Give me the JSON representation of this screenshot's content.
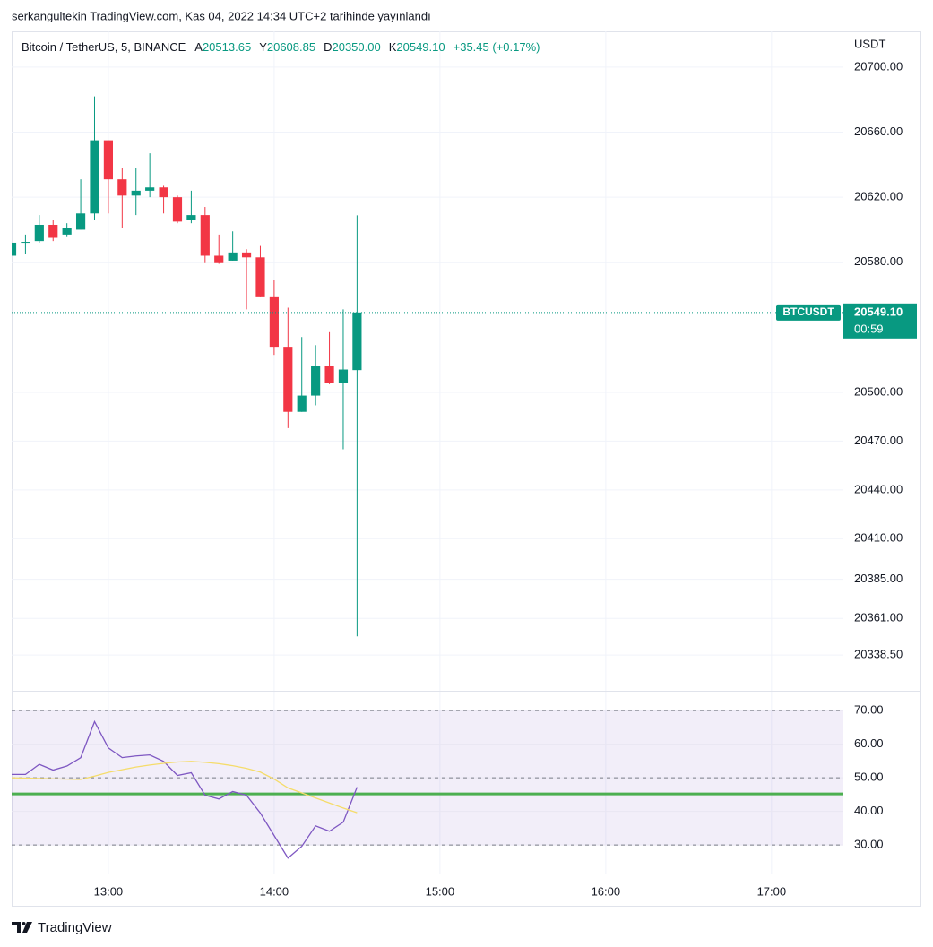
{
  "header": {
    "publisher": "serkangultekin TradingView.com, Kas 04, 2022 14:34 UTC+2 tarihinde yayınlandı"
  },
  "legend": {
    "symbol": "Bitcoin / TetherUS, 5, BINANCE",
    "ohlc": [
      {
        "label": "A",
        "value": "20513.65"
      },
      {
        "label": "Y",
        "value": "20608.85"
      },
      {
        "label": "D",
        "value": "20350.00"
      },
      {
        "label": "K",
        "value": "20549.10"
      }
    ],
    "change": "+35.45 (+0.17%)"
  },
  "chart_data": [
    {
      "type": "candlestick",
      "currency": "USDT",
      "x": [
        "12:25",
        "12:30",
        "12:35",
        "12:40",
        "12:45",
        "12:50",
        "12:55",
        "13:00",
        "13:05",
        "13:10",
        "13:15",
        "13:20",
        "13:25",
        "13:30",
        "13:35",
        "13:40",
        "13:45",
        "13:50",
        "13:55",
        "14:00",
        "14:05",
        "14:10",
        "14:15",
        "14:20",
        "14:25",
        "14:30"
      ],
      "open": [
        20584,
        20592,
        20593,
        20603,
        20597,
        20600,
        20610,
        20655,
        20631,
        20621,
        20624,
        20626,
        20620,
        20606,
        20609,
        20584,
        20581,
        20586,
        20583,
        20559,
        20528,
        20488,
        20498,
        20516.5,
        20506,
        20513.65
      ],
      "high": [
        20592,
        20597,
        20609,
        20606,
        20604,
        20631,
        20682,
        20655,
        20638,
        20638,
        20647,
        20627,
        20621,
        20624,
        20614,
        20597,
        20599,
        20588,
        20590,
        20569,
        20552,
        20534,
        20529,
        20537,
        20551,
        20608.85
      ],
      "low": [
        20584,
        20585,
        20592,
        20593,
        20596,
        20600,
        20606,
        20610,
        20601,
        20609,
        20620,
        20610,
        20604,
        20604,
        20580,
        20579,
        20581,
        20551,
        20559,
        20523,
        20478,
        20488,
        20492,
        20505,
        20465,
        20350
      ],
      "close": [
        20592,
        20592.5,
        20603,
        20595,
        20601,
        20610,
        20655,
        20631,
        20621,
        20624,
        20626,
        20620,
        20605,
        20609,
        20584,
        20580,
        20586,
        20583,
        20559,
        20528,
        20488,
        20498,
        20516.5,
        20506,
        20514,
        20549.1
      ],
      "up_color": "#089981",
      "down_color": "#f23645",
      "ylim": [
        20316.5,
        20722
      ],
      "yticks": [
        {
          "value": 20700,
          "label": "20700.00"
        },
        {
          "value": 20660,
          "label": "20660.00"
        },
        {
          "value": 20620,
          "label": "20620.00"
        },
        {
          "value": 20580,
          "label": "20580.00"
        },
        {
          "value": 20500,
          "label": "20500.00"
        },
        {
          "value": 20470,
          "label": "20470.00"
        },
        {
          "value": 20440,
          "label": "20440.00"
        },
        {
          "value": 20410,
          "label": "20410.00"
        },
        {
          "value": 20385,
          "label": "20385.00"
        },
        {
          "value": 20361,
          "label": "20361.00"
        },
        {
          "value": 20338.5,
          "label": "20338.50"
        }
      ],
      "xlim": [
        "12:25",
        "17:26"
      ],
      "xticks": [
        "13:00",
        "14:00",
        "15:00",
        "16:00",
        "17:00"
      ],
      "grid": true,
      "last_price": {
        "symbol": "BTCUSDT",
        "value": 20549.1,
        "label": "20549.10",
        "countdown": "00:59",
        "color": "#089981"
      }
    },
    {
      "type": "line",
      "series": [
        {
          "color": "#7e57c2",
          "values": [
            51.0,
            51.0,
            54.0,
            52.3,
            53.5,
            56.0,
            66.7,
            58.9,
            56.0,
            56.5,
            56.8,
            54.9,
            50.7,
            51.5,
            44.8,
            43.7,
            45.9,
            44.8,
            39.5,
            32.8,
            26.1,
            29.6,
            35.7,
            34.1,
            36.8,
            47.2
          ]
        },
        {
          "color": "#f5dc6a",
          "values": [
            50.0,
            49.9,
            49.8,
            49.7,
            49.6,
            49.5,
            50.5,
            51.6,
            52.4,
            53.2,
            53.8,
            54.3,
            54.7,
            54.9,
            54.6,
            54.2,
            53.6,
            52.8,
            51.7,
            49.6,
            47.0,
            45.5,
            44.0,
            42.5,
            41.0,
            39.6
          ]
        }
      ],
      "ylim": [
        21.5,
        75.9
      ],
      "yticks": [
        {
          "value": 70,
          "label": "70.00"
        },
        {
          "value": 60,
          "label": "60.00"
        },
        {
          "value": 50,
          "label": "50.00"
        },
        {
          "value": 40,
          "label": "40.00"
        },
        {
          "value": 30,
          "label": "30.00"
        }
      ],
      "upper_band": 70,
      "middle_band": 50,
      "lower_band": 30,
      "band_color": "#7e57c2",
      "level_line": {
        "value": 45.2,
        "color": "#4caf50"
      }
    }
  ],
  "footer": {
    "brand": "TradingView"
  }
}
